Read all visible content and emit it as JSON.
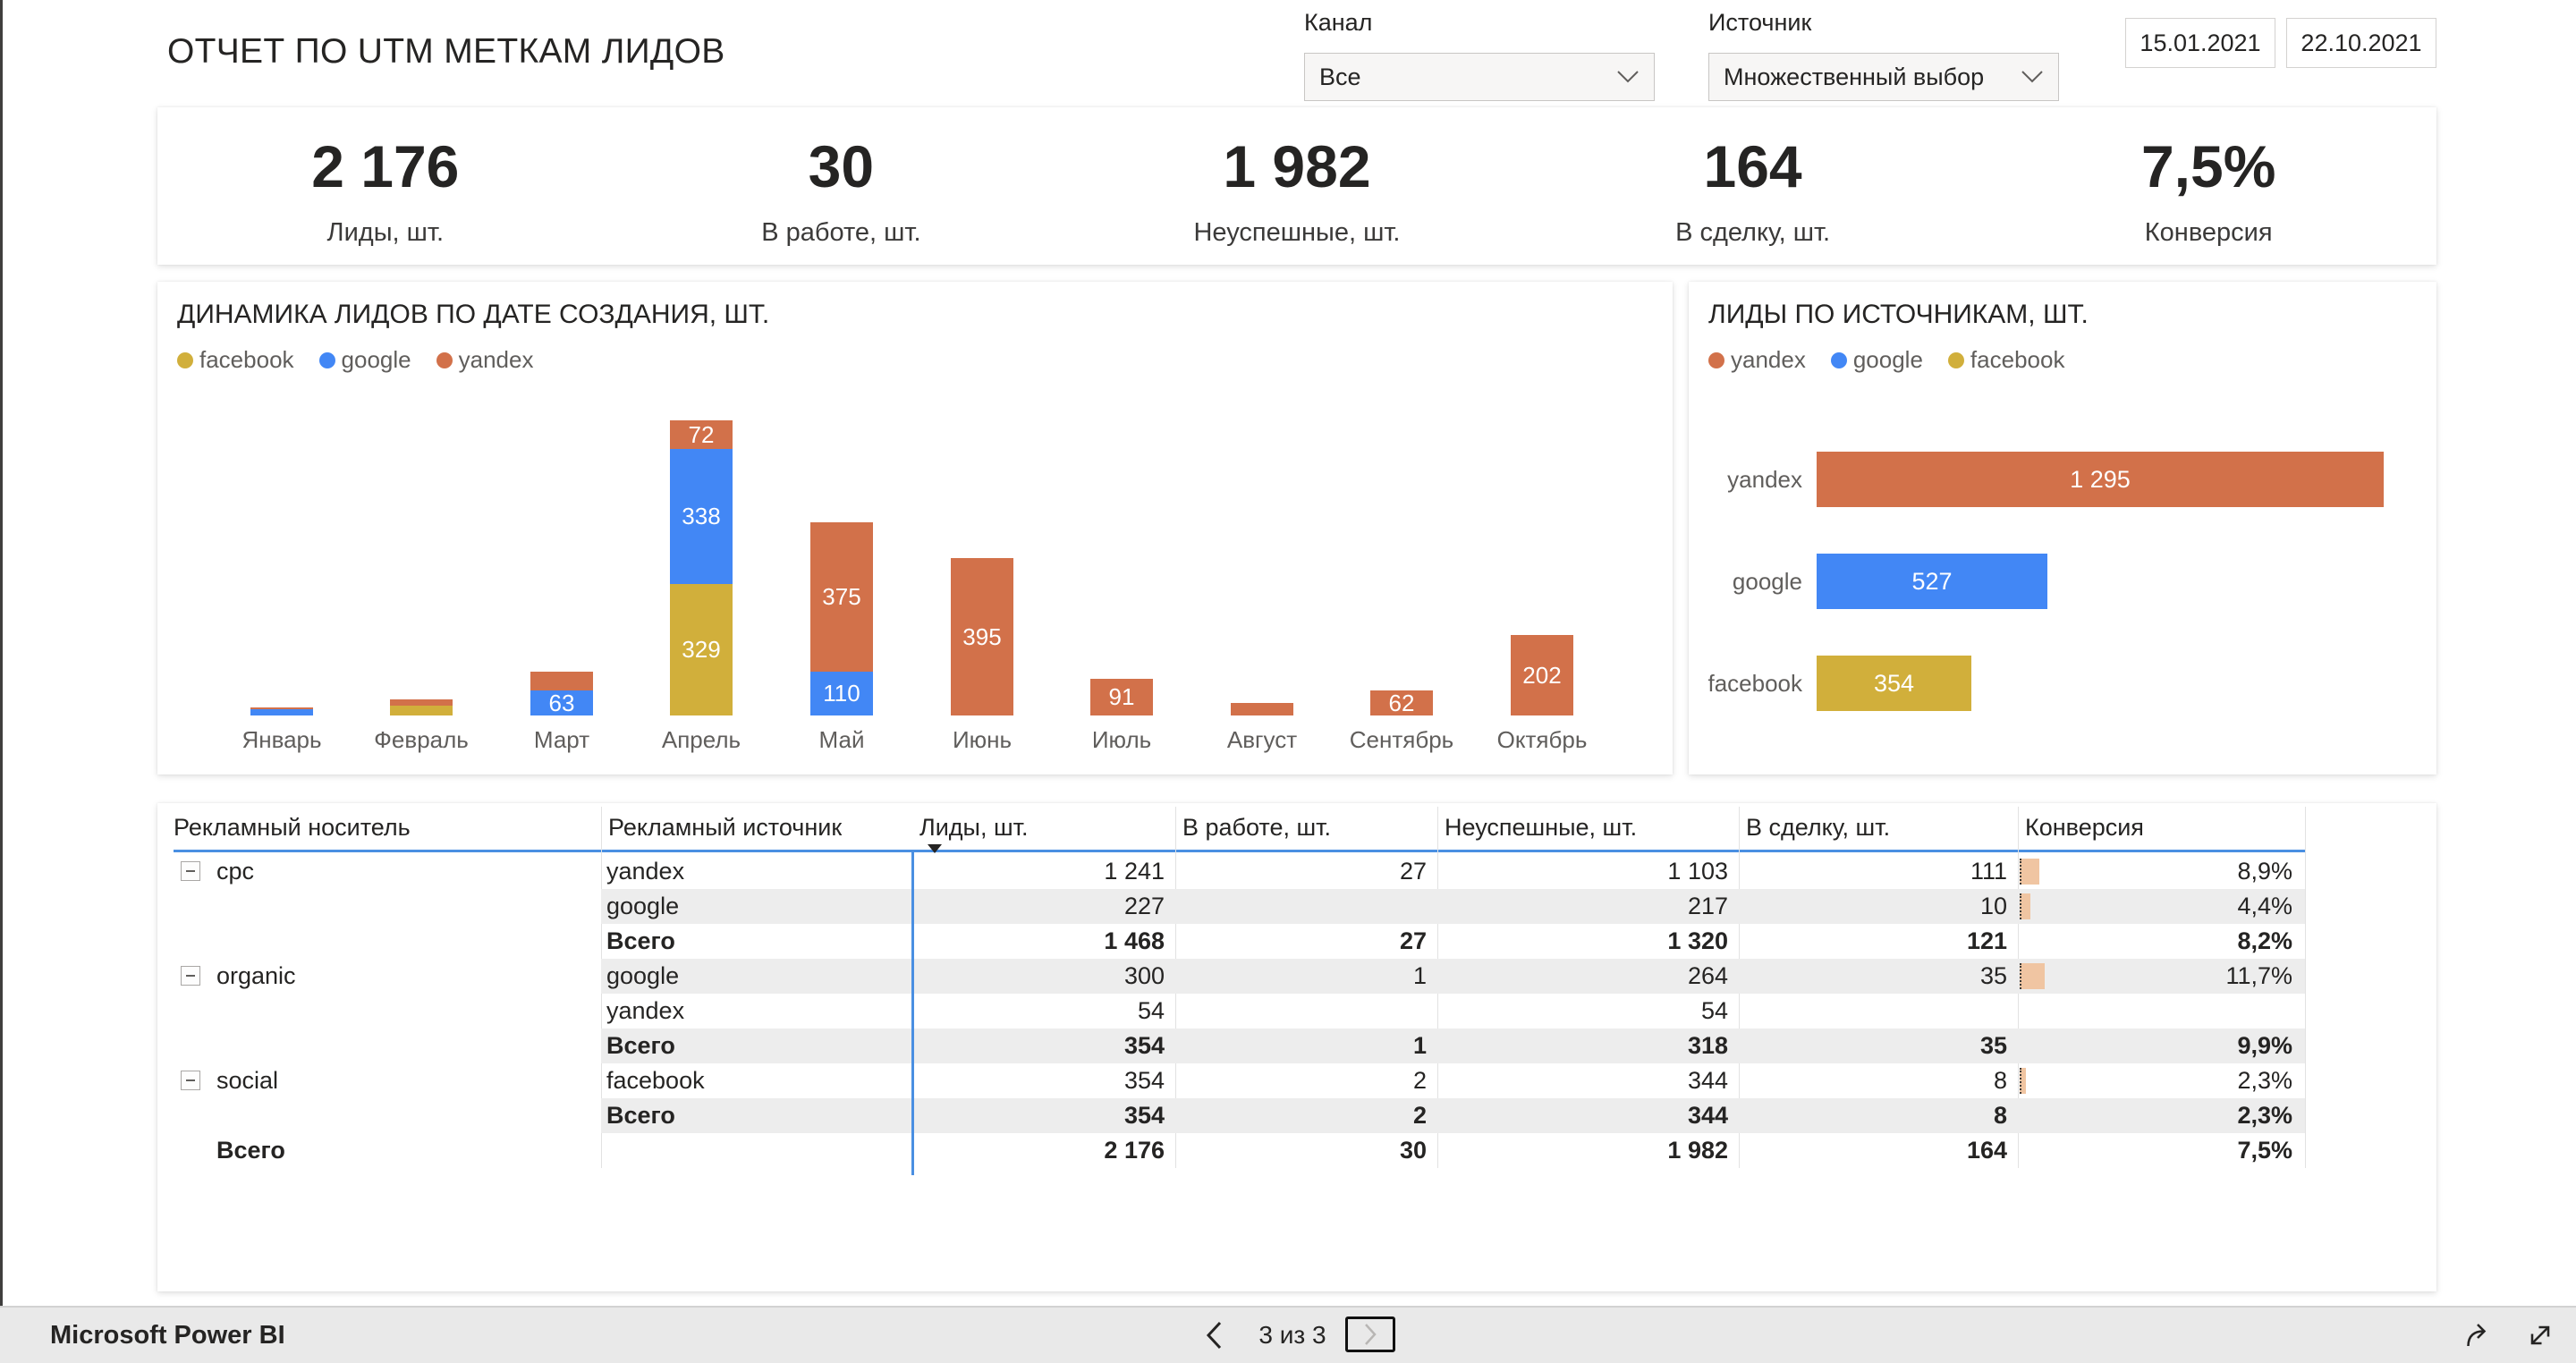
{
  "header": {
    "title": "ОТЧЕТ ПО UTM МЕТКАМ ЛИДОВ",
    "channel": {
      "label": "Канал",
      "value": "Все"
    },
    "source": {
      "label": "Источник",
      "value": "Множественный выбор"
    },
    "date_from": "15.01.2021",
    "date_to": "22.10.2021"
  },
  "kpis": [
    {
      "value": "2 176",
      "label": "Лиды, шт."
    },
    {
      "value": "30",
      "label": "В работе, шт."
    },
    {
      "value": "1 982",
      "label": "Неуспешные, шт."
    },
    {
      "value": "164",
      "label": "В сделку, шт."
    },
    {
      "value": "7,5%",
      "label": "Конверсия"
    }
  ],
  "colors": {
    "yandex": "#D2714A",
    "google": "#4287F5",
    "facebook": "#D1AF3B",
    "databar": "#F0C5A2",
    "accent_line": "#4A8FE2"
  },
  "chart_data": [
    {
      "type": "bar",
      "stacked": true,
      "title": "ДИНАМИКА ЛИДОВ ПО ДАТЕ СОЗДАНИЯ, ШТ.",
      "legend": [
        "facebook",
        "google",
        "yandex"
      ],
      "categories": [
        "Январь",
        "Февраль",
        "Март",
        "Апрель",
        "Май",
        "Июнь",
        "Июль",
        "Август",
        "Сентябрь",
        "Октябрь"
      ],
      "series": [
        {
          "name": "facebook",
          "values": [
            0,
            25,
            0,
            329,
            0,
            0,
            0,
            0,
            0,
            0
          ]
        },
        {
          "name": "google",
          "values": [
            16,
            0,
            63,
            338,
            110,
            0,
            0,
            0,
            0,
            0
          ]
        },
        {
          "name": "yandex",
          "values": [
            4,
            15,
            48,
            72,
            375,
            395,
            91,
            31,
            62,
            202
          ]
        }
      ],
      "label_threshold": 56,
      "ylim": [
        0,
        780
      ],
      "grid": false,
      "legend_position": "top-left"
    },
    {
      "type": "bar",
      "orientation": "horizontal",
      "title": "ЛИДЫ ПО ИСТОЧНИКАМ, ШТ.",
      "legend": [
        "yandex",
        "google",
        "facebook"
      ],
      "categories": [
        "yandex",
        "google",
        "facebook"
      ],
      "values": [
        1295,
        527,
        354
      ],
      "values_display": [
        "1 295",
        "527",
        "354"
      ],
      "xlim": [
        0,
        1360
      ],
      "grid": false,
      "legend_position": "top-left"
    }
  ],
  "table": {
    "columns": [
      "Рекламный носитель",
      "Рекламный источник",
      "Лиды, шт.",
      "В работе, шт.",
      "Неуспешные, шт.",
      "В сделку, шт.",
      "Конверсия"
    ],
    "sorted_column": "Лиды, шт.",
    "sort_direction": "descending",
    "rows": [
      {
        "carrier": "cpc",
        "collapse": true,
        "source": "yandex",
        "leads": "1 241",
        "inwork": "27",
        "failed": "1 103",
        "deal": "111",
        "conv": "8,9%",
        "bar": 8.9,
        "bold": false
      },
      {
        "source": "google",
        "leads": "227",
        "inwork": "",
        "failed": "217",
        "deal": "10",
        "conv": "4,4%",
        "bar": 4.4,
        "bold": false
      },
      {
        "source": "Всего",
        "leads": "1 468",
        "inwork": "27",
        "failed": "1 320",
        "deal": "121",
        "conv": "8,2%",
        "bold": true
      },
      {
        "carrier": "organic",
        "collapse": true,
        "source": "google",
        "leads": "300",
        "inwork": "1",
        "failed": "264",
        "deal": "35",
        "conv": "11,7%",
        "bar": 11.7,
        "bold": false
      },
      {
        "source": "yandex",
        "leads": "54",
        "inwork": "",
        "failed": "54",
        "deal": "",
        "conv": "",
        "bold": false
      },
      {
        "source": "Всего",
        "leads": "354",
        "inwork": "1",
        "failed": "318",
        "deal": "35",
        "conv": "9,9%",
        "bold": true
      },
      {
        "carrier": "social",
        "collapse": true,
        "source": "facebook",
        "leads": "354",
        "inwork": "2",
        "failed": "344",
        "deal": "8",
        "conv": "2,3%",
        "bar": 2.3,
        "bold": false
      },
      {
        "source": "Всего",
        "leads": "354",
        "inwork": "2",
        "failed": "344",
        "deal": "8",
        "conv": "2,3%",
        "bold": true
      },
      {
        "carrier": "Всего",
        "grand": true,
        "source": "",
        "leads": "2 176",
        "inwork": "30",
        "failed": "1 982",
        "deal": "164",
        "conv": "7,5%",
        "bold": true
      }
    ]
  },
  "footer": {
    "brand": "Microsoft Power BI",
    "page_status": "3 из 3"
  }
}
